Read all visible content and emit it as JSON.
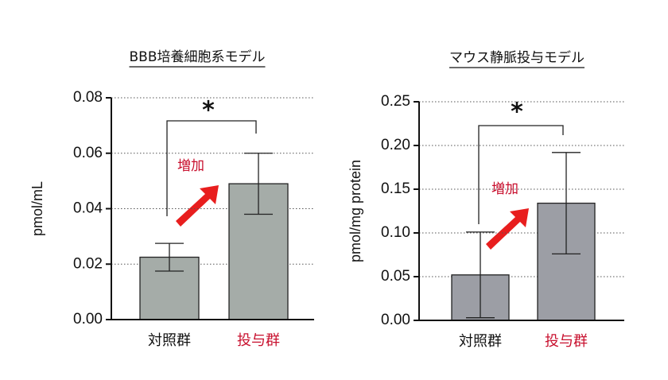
{
  "chart_data": [
    {
      "type": "bar",
      "title": "BBB培養細胞系モデル",
      "y_label": "pmol/mL",
      "categories": [
        "対照群",
        "投与群"
      ],
      "category_colors": [
        "#111111",
        "#c8102e"
      ],
      "values": [
        0.0225,
        0.049
      ],
      "errors": [
        0.005,
        0.011
      ],
      "color": "#a5aca8",
      "ylim": [
        0,
        0.08
      ],
      "yticks": [
        {
          "value": 0,
          "label": "0.00"
        },
        {
          "value": 0.02,
          "label": "0.02"
        },
        {
          "value": 0.04,
          "label": "0.04"
        },
        {
          "value": 0.06,
          "label": "0.06"
        },
        {
          "value": 0.08,
          "label": "0.08"
        }
      ],
      "grid": true,
      "significance": "*",
      "annotation": "増加"
    },
    {
      "type": "bar",
      "title": "マウス静脈投与モデル",
      "y_label": "pmol/mg protein",
      "categories": [
        "対照群",
        "投与群"
      ],
      "category_colors": [
        "#111111",
        "#c8102e"
      ],
      "values": [
        0.052,
        0.134
      ],
      "errors": [
        0.049,
        0.058
      ],
      "color": "#9c9ea5",
      "ylim": [
        0,
        0.25
      ],
      "yticks": [
        {
          "value": 0,
          "label": "0.00"
        },
        {
          "value": 0.05,
          "label": "0.05"
        },
        {
          "value": 0.1,
          "label": "0.10"
        },
        {
          "value": 0.15,
          "label": "0.15"
        },
        {
          "value": 0.2,
          "label": "0.20"
        },
        {
          "value": 0.25,
          "label": "0.25"
        }
      ],
      "grid": true,
      "significance": "*",
      "annotation": "増加"
    }
  ]
}
